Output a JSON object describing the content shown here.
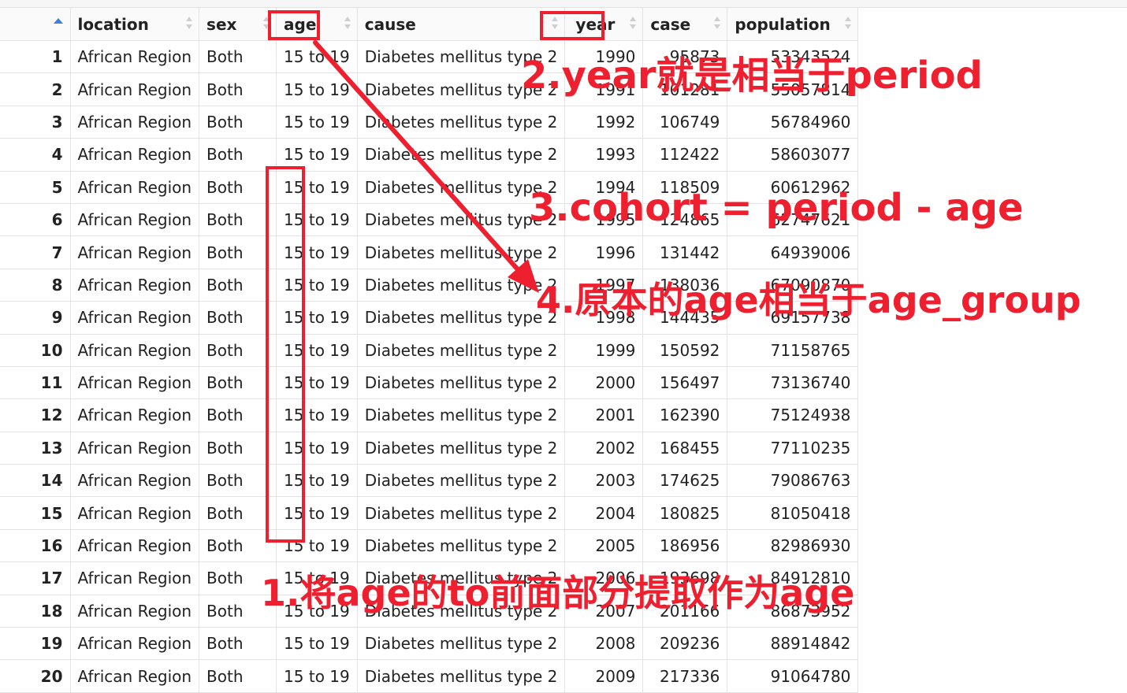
{
  "table": {
    "columns": [
      "location",
      "sex",
      "age",
      "cause",
      "year",
      "case",
      "population"
    ],
    "rows": [
      [
        "1",
        "African Region",
        "Both",
        "15 to 19",
        "Diabetes mellitus type 2",
        "1990",
        "95873",
        "53343524"
      ],
      [
        "2",
        "African Region",
        "Both",
        "15 to 19",
        "Diabetes mellitus type 2",
        "1991",
        "101281",
        "55057814"
      ],
      [
        "3",
        "African Region",
        "Both",
        "15 to 19",
        "Diabetes mellitus type 2",
        "1992",
        "106749",
        "56784960"
      ],
      [
        "4",
        "African Region",
        "Both",
        "15 to 19",
        "Diabetes mellitus type 2",
        "1993",
        "112422",
        "58603077"
      ],
      [
        "5",
        "African Region",
        "Both",
        "15 to 19",
        "Diabetes mellitus type 2",
        "1994",
        "118509",
        "60612962"
      ],
      [
        "6",
        "African Region",
        "Both",
        "15 to 19",
        "Diabetes mellitus type 2",
        "1995",
        "124865",
        "62747621"
      ],
      [
        "7",
        "African Region",
        "Both",
        "15 to 19",
        "Diabetes mellitus type 2",
        "1996",
        "131442",
        "64939006"
      ],
      [
        "8",
        "African Region",
        "Both",
        "15 to 19",
        "Diabetes mellitus type 2",
        "1997",
        "138036",
        "67090870"
      ],
      [
        "9",
        "African Region",
        "Both",
        "15 to 19",
        "Diabetes mellitus type 2",
        "1998",
        "144435",
        "69157738"
      ],
      [
        "10",
        "African Region",
        "Both",
        "15 to 19",
        "Diabetes mellitus type 2",
        "1999",
        "150592",
        "71158765"
      ],
      [
        "11",
        "African Region",
        "Both",
        "15 to 19",
        "Diabetes mellitus type 2",
        "2000",
        "156497",
        "73136740"
      ],
      [
        "12",
        "African Region",
        "Both",
        "15 to 19",
        "Diabetes mellitus type 2",
        "2001",
        "162390",
        "75124938"
      ],
      [
        "13",
        "African Region",
        "Both",
        "15 to 19",
        "Diabetes mellitus type 2",
        "2002",
        "168455",
        "77110235"
      ],
      [
        "14",
        "African Region",
        "Both",
        "15 to 19",
        "Diabetes mellitus type 2",
        "2003",
        "174625",
        "79086763"
      ],
      [
        "15",
        "African Region",
        "Both",
        "15 to 19",
        "Diabetes mellitus type 2",
        "2004",
        "180825",
        "81050418"
      ],
      [
        "16",
        "African Region",
        "Both",
        "15 to 19",
        "Diabetes mellitus type 2",
        "2005",
        "186956",
        "82986930"
      ],
      [
        "17",
        "African Region",
        "Both",
        "15 to 19",
        "Diabetes mellitus type 2",
        "2006",
        "193698",
        "84912810"
      ],
      [
        "18",
        "African Region",
        "Both",
        "15 to 19",
        "Diabetes mellitus type 2",
        "2007",
        "201166",
        "86873952"
      ],
      [
        "19",
        "African Region",
        "Both",
        "15 to 19",
        "Diabetes mellitus type 2",
        "2008",
        "209236",
        "88914842"
      ],
      [
        "20",
        "African Region",
        "Both",
        "15 to 19",
        "Diabetes mellitus type 2",
        "2009",
        "217336",
        "91064780"
      ]
    ]
  },
  "annotations": {
    "note1": "1.将age的to前面部分提取作为age",
    "note2": "2.year就是相当于period",
    "note3": "3.cohort = period - age",
    "note4": "4.原本的age相当于age_group",
    "color": "#ee1f2f"
  },
  "sort_indicator_color": "#3c7fdc"
}
